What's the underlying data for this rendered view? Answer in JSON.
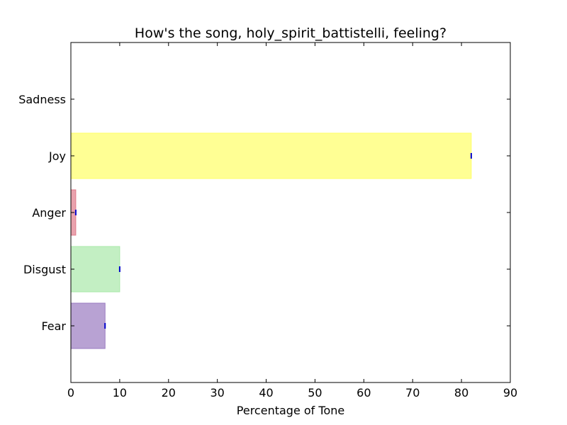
{
  "chart_data": {
    "type": "bar",
    "orientation": "horizontal",
    "title": "How's the song, holy_spirit_battistelli, feeling?",
    "xlabel": "Percentage of Tone",
    "ylabel": "",
    "xlim": [
      0,
      90
    ],
    "xticks": [
      "0",
      "10",
      "20",
      "30",
      "40",
      "50",
      "60",
      "70",
      "80",
      "90"
    ],
    "grid": false,
    "categories": [
      "Fear",
      "Disgust",
      "Anger",
      "Joy",
      "Sadness"
    ],
    "values": [
      7,
      10,
      1,
      82,
      0
    ],
    "colors": [
      "#9a7bc0",
      "#a9e8a9",
      "#e07a8a",
      "#ffff66",
      "#6f9fd8"
    ]
  }
}
